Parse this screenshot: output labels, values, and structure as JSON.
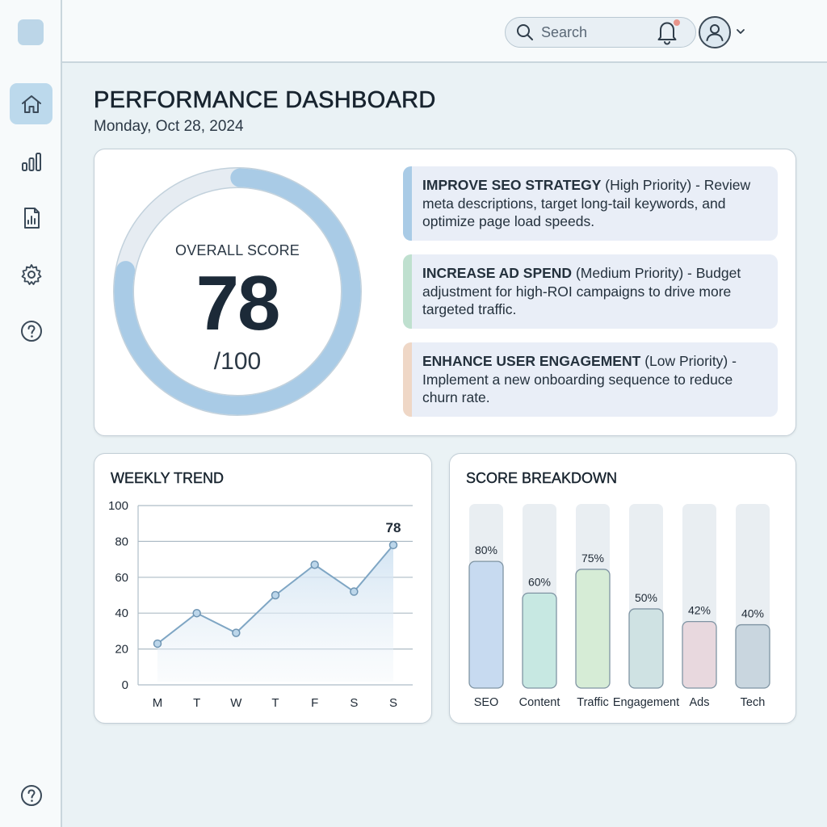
{
  "header": {
    "search_placeholder": "Search"
  },
  "sidebar": {
    "items": [
      {
        "name": "home",
        "active": true
      },
      {
        "name": "analytics"
      },
      {
        "name": "reports"
      },
      {
        "name": "settings"
      },
      {
        "name": "help"
      }
    ],
    "bottom": {
      "name": "help"
    }
  },
  "page": {
    "title": "PERFORMANCE DASHBOARD",
    "date": "Monday, Oct 28, 2024"
  },
  "score": {
    "label": "OVERALL SCORE",
    "value": "78",
    "max": "/100",
    "fraction": 0.78
  },
  "recommendations": [
    {
      "title": "IMPROVE SEO STRATEGY",
      "priority": "(High Priority)",
      "text": " - Review meta descriptions, target long-tail keywords, and optimize page load speeds.",
      "color": "#a9cbe6"
    },
    {
      "title": "INCREASE AD SPEND",
      "priority": "(Medium Priority)",
      "text": " - Budget adjustment for high-ROI campaigns to drive more targeted traffic.",
      "color": "#bfe0cf"
    },
    {
      "title": "ENHANCE USER ENGAGEMENT",
      "priority": "(Low Priority)",
      "text": " - Implement a new onboarding sequence to reduce churn rate.",
      "color": "#efd7c6"
    }
  ],
  "trend": {
    "title": "WEEKLY TREND"
  },
  "breakdown": {
    "title": "SCORE BREAKDOWN"
  },
  "chart_data": [
    {
      "type": "line",
      "title": "WEEKLY TREND",
      "categories": [
        "M",
        "T",
        "W",
        "T",
        "F",
        "S",
        "S"
      ],
      "values": [
        23,
        40,
        29,
        50,
        67,
        52,
        78
      ],
      "yticks": [
        0,
        20,
        40,
        60,
        80,
        100
      ],
      "ylim": [
        0,
        100
      ],
      "annotation": "78",
      "grid": true
    },
    {
      "type": "bar",
      "title": "SCORE BREAKDOWN",
      "categories": [
        "SEO",
        "Content",
        "Traffic",
        "Engagement",
        "Ads",
        "Tech"
      ],
      "values": [
        80,
        60,
        75,
        50,
        42,
        40
      ],
      "labels": [
        "80%",
        "60%",
        "75%",
        "50%",
        "42%",
        "40%"
      ],
      "colors": [
        "#c7daf0",
        "#c7e8e2",
        "#d6ecd6",
        "#cfe2e3",
        "#e8d8de",
        "#c9d6df"
      ],
      "ylim": [
        0,
        100
      ]
    }
  ]
}
